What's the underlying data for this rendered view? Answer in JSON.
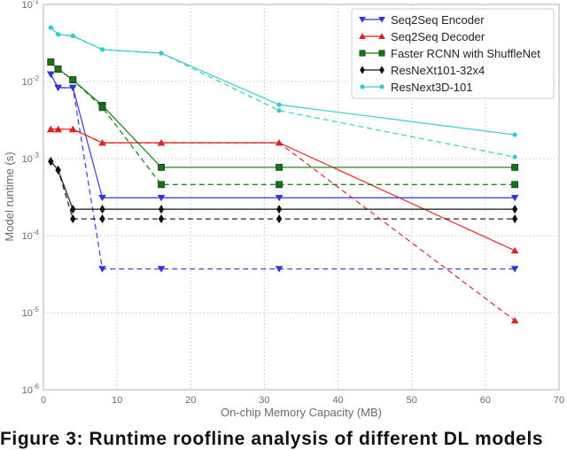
{
  "chart_data": {
    "type": "line",
    "title": "",
    "xlabel": "On-chip Memory Capacity (MB)",
    "ylabel": "Model runtime (s)",
    "xlim": [
      0,
      70
    ],
    "ylim": [
      1e-06,
      0.1
    ],
    "yscale": "log",
    "grid": true,
    "legend_position": "upper right",
    "x_ticks": [
      0,
      10,
      20,
      30,
      40,
      50,
      60,
      70
    ],
    "y_ticks": [
      "10^-6",
      "10^-5",
      "10^-4",
      "10^-3",
      "10^-2",
      "10^-1"
    ],
    "x": [
      1,
      2,
      4,
      8,
      16,
      32,
      64
    ],
    "series": [
      {
        "name": "Seq2Seq Encoder",
        "color": "#3333dd",
        "marker": "triangle-down",
        "style": "solid",
        "values": [
          0.0124,
          0.0083,
          0.0083,
          0.00031,
          0.00031,
          0.00031,
          0.00031
        ]
      },
      {
        "name": "Seq2Seq Encoder (dashed)",
        "color": "#3333dd",
        "marker": "triangle-down",
        "style": "dashed",
        "in_legend": false,
        "values": [
          0.0124,
          0.0083,
          0.0083,
          3.7e-05,
          3.7e-05,
          3.7e-05,
          3.7e-05
        ]
      },
      {
        "name": "Seq2Seq Decoder",
        "color": "#dd2222",
        "marker": "triangle-up",
        "style": "solid",
        "values": [
          0.0024,
          0.0024,
          0.0024,
          0.0016,
          0.0016,
          0.0016,
          6.4e-05
        ]
      },
      {
        "name": "Seq2Seq Decoder (dashed)",
        "color": "#dd2222",
        "marker": "triangle-up",
        "style": "dashed",
        "in_legend": false,
        "values": [
          0.0024,
          0.0024,
          0.0024,
          0.0016,
          0.0016,
          0.0016,
          7.9e-06
        ]
      },
      {
        "name": "Faster RCNN with ShuffleNet",
        "color": "#117711",
        "marker": "square",
        "style": "solid",
        "values": [
          0.0179,
          0.0145,
          0.0105,
          0.0049,
          0.00077,
          0.00077,
          0.00077
        ]
      },
      {
        "name": "Faster RCNN with ShuffleNet (dashed)",
        "color": "#117711",
        "marker": "square",
        "style": "dashed",
        "in_legend": false,
        "values": [
          0.0179,
          0.0145,
          0.0105,
          0.0046,
          0.00046,
          0.00046,
          0.00046
        ]
      },
      {
        "name": "ResNeXt101-32x4",
        "color": "#111111",
        "marker": "diamond",
        "style": "solid",
        "values": [
          0.00092,
          0.00071,
          0.00022,
          0.00022,
          0.00022,
          0.00022,
          0.00022
        ]
      },
      {
        "name": "ResNeXt101-32x4 (dashed)",
        "color": "#111111",
        "marker": "diamond",
        "style": "dashed",
        "in_legend": false,
        "values": [
          0.00092,
          0.00071,
          0.000165,
          0.000165,
          0.000165,
          0.000165,
          0.000165
        ]
      },
      {
        "name": "ResNext3D-101",
        "color": "#33cccc",
        "marker": "point",
        "style": "solid",
        "values": [
          0.05,
          0.041,
          0.039,
          0.026,
          0.0233,
          0.005,
          0.00204
        ]
      },
      {
        "name": "ResNext3D-101 (dashed)",
        "color": "#33cccc",
        "marker": "point",
        "style": "dashed",
        "in_legend": false,
        "values": [
          0.05,
          0.041,
          0.039,
          0.026,
          0.0233,
          0.0042,
          0.00105
        ]
      }
    ]
  },
  "legend": {
    "items": [
      {
        "label": "Seq2Seq Encoder",
        "color": "#3333dd",
        "marker": "triangle-down"
      },
      {
        "label": "Seq2Seq Decoder",
        "color": "#dd2222",
        "marker": "triangle-up"
      },
      {
        "label": "Faster RCNN with ShuffleNet",
        "color": "#117711",
        "marker": "square"
      },
      {
        "label": "ResNeXt101-32x4",
        "color": "#111111",
        "marker": "diamond"
      },
      {
        "label": "ResNext3D-101",
        "color": "#33cccc",
        "marker": "point"
      }
    ]
  },
  "axes": {
    "xlabel": "On-chip Memory Capacity (MB)",
    "ylabel": "Model runtime (s)",
    "x_tick_labels": [
      "0",
      "10",
      "20",
      "30",
      "40",
      "50",
      "60",
      "70"
    ],
    "y_tick_labels": [
      {
        "base": "10",
        "exp": "-1"
      },
      {
        "base": "10",
        "exp": "-2"
      },
      {
        "base": "10",
        "exp": "-3"
      },
      {
        "base": "10",
        "exp": "-4"
      },
      {
        "base": "10",
        "exp": "-5"
      },
      {
        "base": "10",
        "exp": "-6"
      }
    ]
  },
  "caption": "Figure 3:  Runtime roofline analysis of different DL models"
}
